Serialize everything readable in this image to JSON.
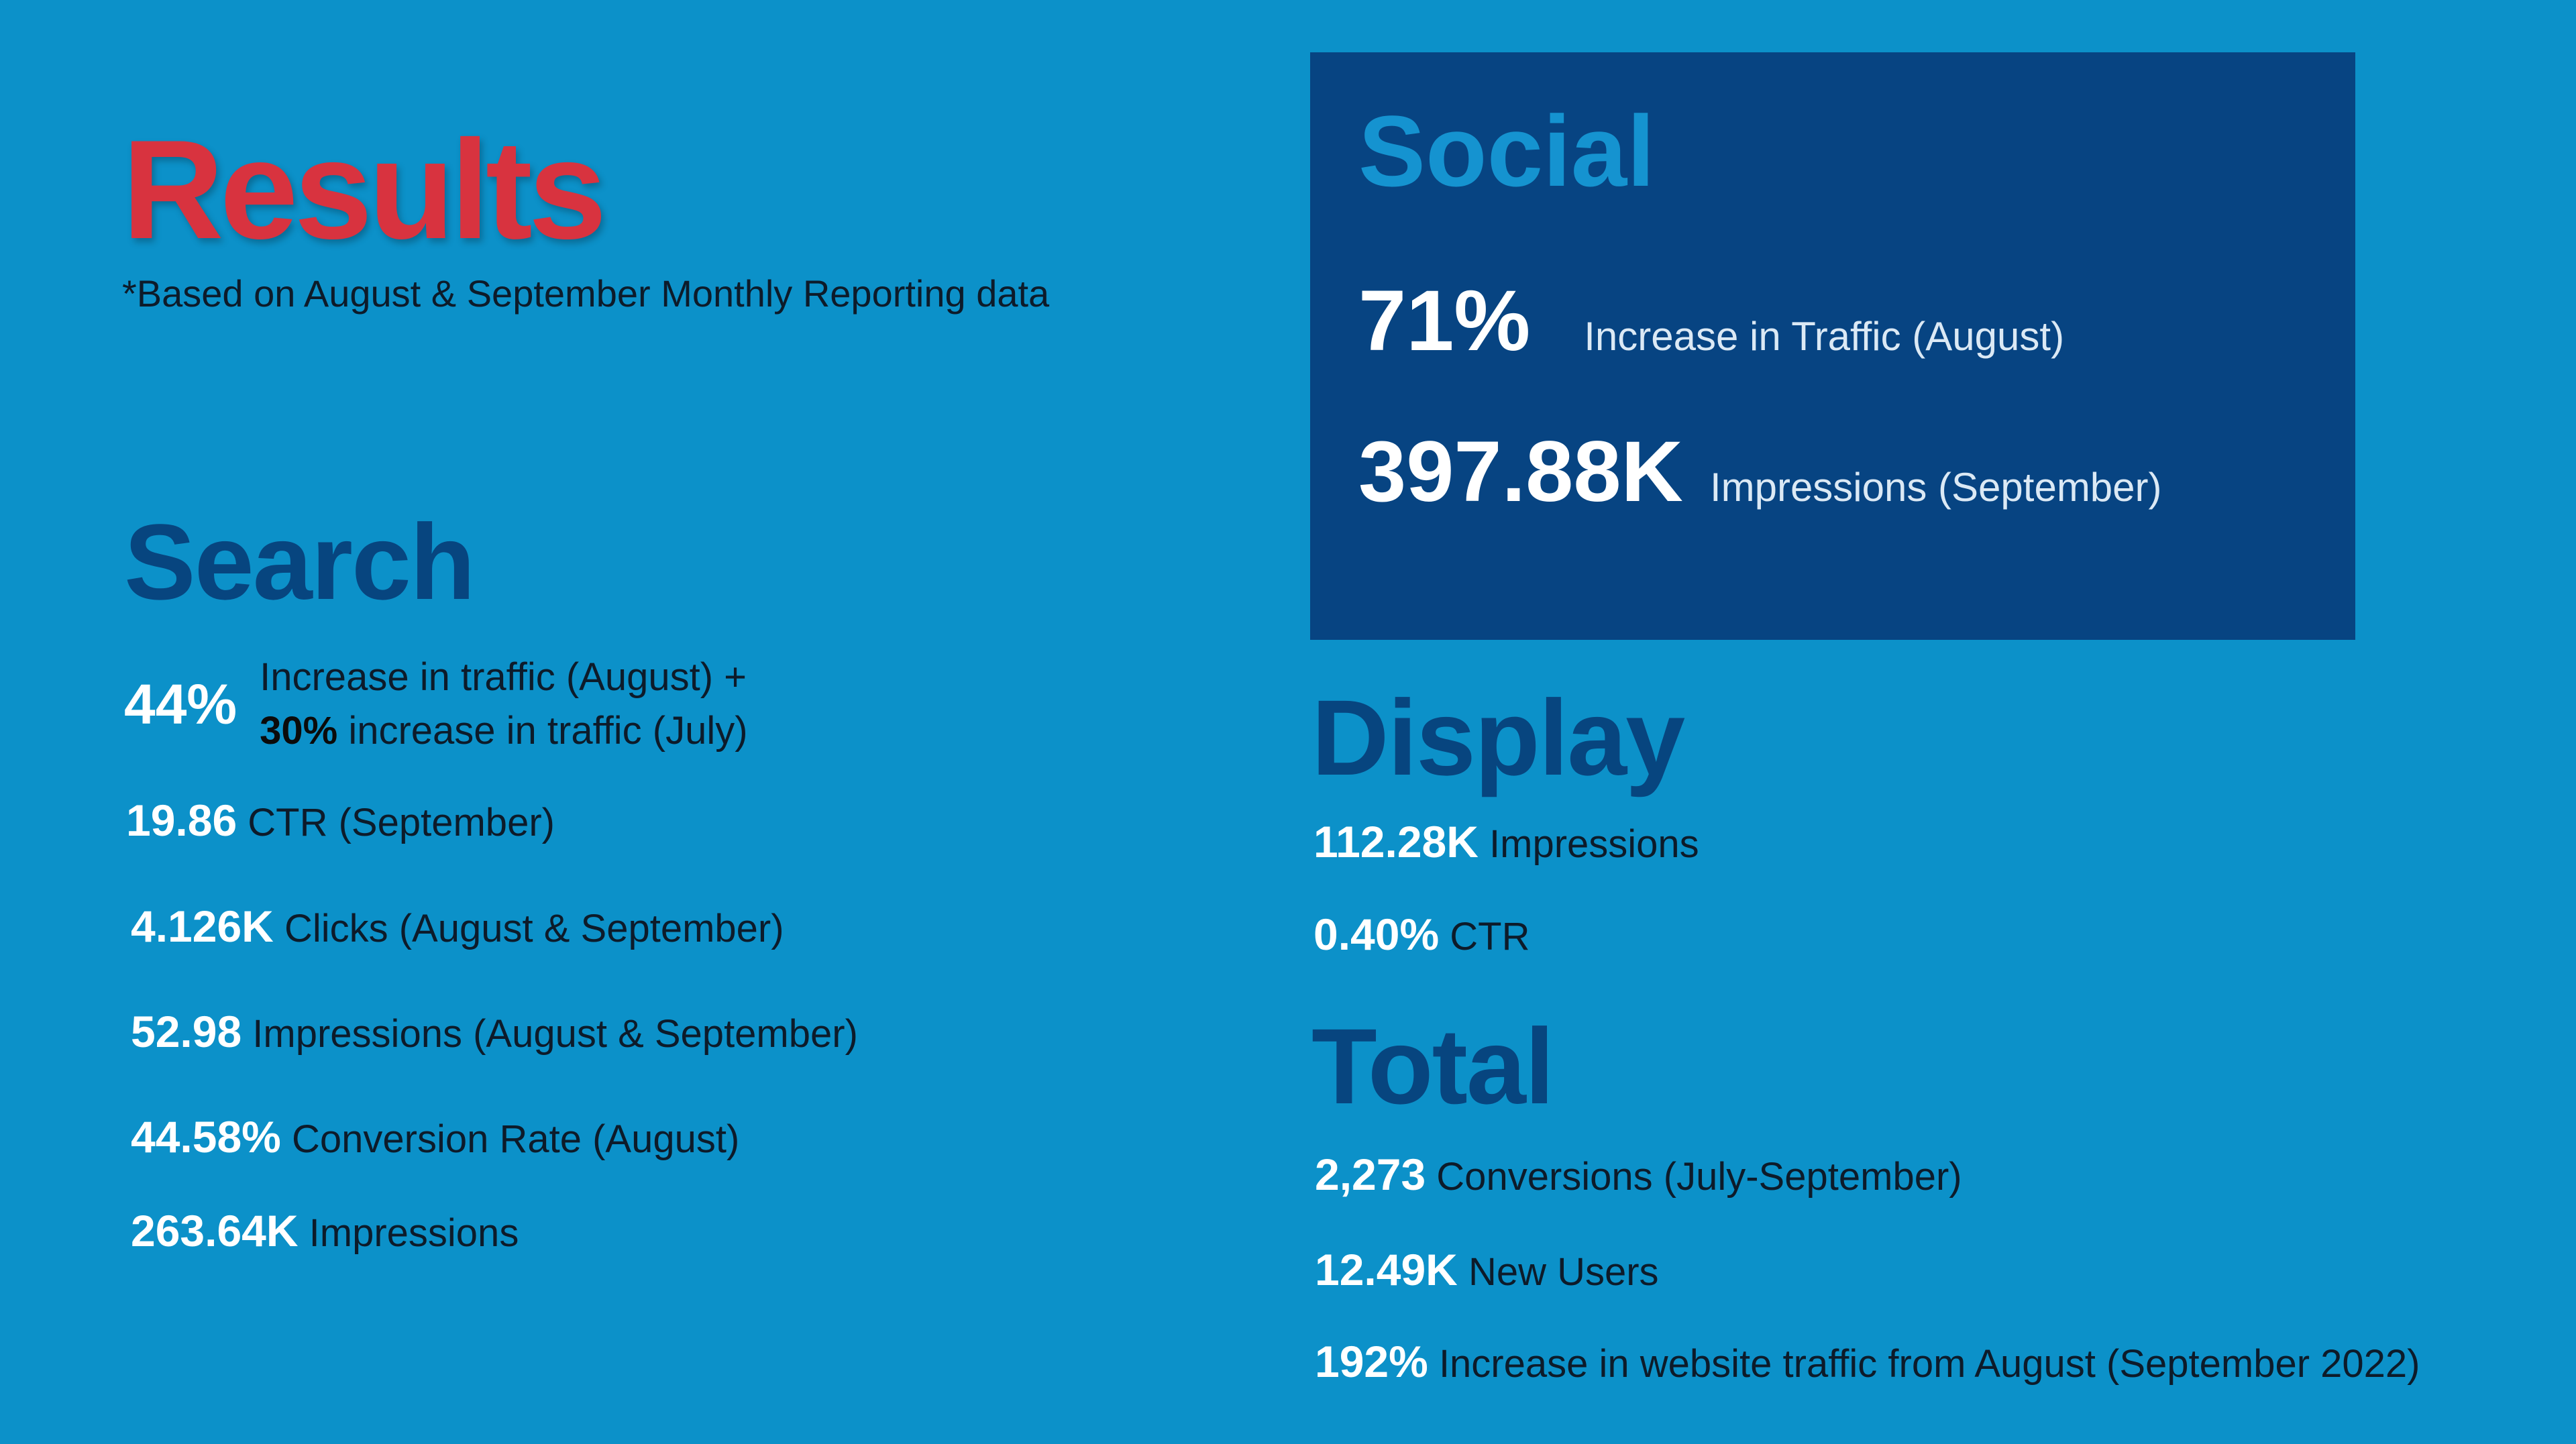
{
  "header": {
    "title": "Results",
    "subtitle": "*Based on August & September Monthly Reporting data"
  },
  "search": {
    "heading": "Search",
    "highlight": {
      "value": "44%",
      "line1": "Increase in traffic (August) +",
      "line2_bold": "30%",
      "line2_rest": " increase in traffic (July)"
    },
    "metrics": [
      {
        "value": "19.86",
        "label": "CTR (September)"
      },
      {
        "value": "4.126K",
        "label": "Clicks (August & September)"
      },
      {
        "value": "52.98",
        "label": "Impressions (August & September)"
      },
      {
        "value": "44.58%",
        "label": "Conversion Rate (August)"
      },
      {
        "value": "263.64K",
        "label": "Impressions"
      }
    ]
  },
  "social": {
    "heading": "Social",
    "metrics": [
      {
        "value": "71%",
        "label": "Increase in Traffic (August)"
      },
      {
        "value": "397.88K",
        "label": "Impressions (September)"
      }
    ]
  },
  "display": {
    "heading": "Display",
    "metrics": [
      {
        "value": "112.28K",
        "label": "Impressions"
      },
      {
        "value": "0.40%",
        "label": "CTR"
      }
    ]
  },
  "total": {
    "heading": "Total",
    "metrics": [
      {
        "value": "2,273",
        "label": "Conversions (July-September)"
      },
      {
        "value": "12.49K",
        "label": "New Users"
      },
      {
        "value": "192%",
        "label": "Increase in website traffic from August (September 2022)"
      }
    ]
  },
  "colors": {
    "background": "#0c91c9",
    "title_red": "#d8333f",
    "heading_navy": "#07457f",
    "social_panel": "#074482",
    "social_title": "#1593d0",
    "value_white": "#ffffff"
  }
}
